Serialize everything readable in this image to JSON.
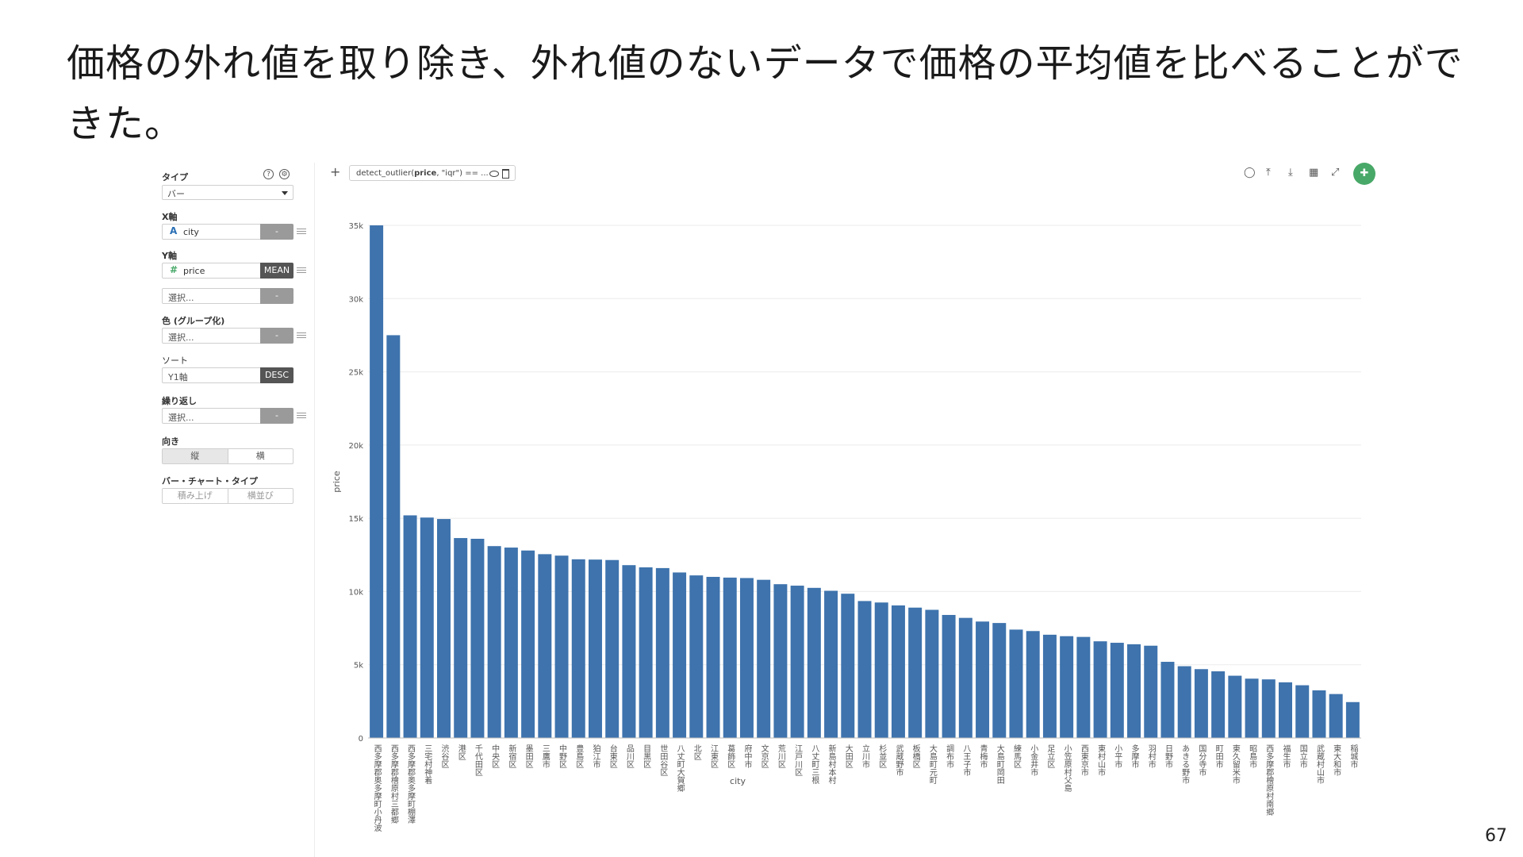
{
  "slide": {
    "title": "価格の外れ値を取り除き、外れ値のないデータで価格の平均値を比べることができた。",
    "page_number": "67"
  },
  "panel": {
    "type_label": "タイプ",
    "type_value": "バー",
    "x_axis_label": "X軸",
    "x_field": "city",
    "x_field_icon": "A",
    "x_agg": "-",
    "y_axis_label": "Y軸",
    "y_field": "price",
    "y_field_icon": "#",
    "y_agg": "MEAN",
    "y2_placeholder": "選択...",
    "y2_agg": "-",
    "color_label": "色 (グループ化)",
    "color_placeholder": "選択...",
    "color_agg": "-",
    "sort_label": "ソート",
    "sort_value": "Y1軸",
    "sort_order": "DESC",
    "repeat_label": "繰り返し",
    "repeat_placeholder": "選択...",
    "repeat_agg": "-",
    "orientation_label": "向き",
    "orientation_options": [
      "縦",
      "横"
    ],
    "bar_type_label": "バー・チャート・タイプ",
    "bar_type_options": [
      "積み上げ",
      "横並び"
    ],
    "icons": {
      "help": "help-icon",
      "settings": "gear-icon"
    }
  },
  "toolbar": {
    "add": "+",
    "filter_prefix": "detect_outlier(",
    "filter_bold": "price",
    "filter_suffix": ", \"iqr\") == ...",
    "icons": [
      "comment-icon",
      "upload-icon",
      "download-icon",
      "table-icon",
      "expand-icon",
      "pin-icon"
    ],
    "pin_color": "#48a868"
  },
  "chart_data": {
    "type": "bar",
    "xlabel": "city",
    "ylabel": "price",
    "ylim": [
      0,
      35000
    ],
    "yticks": [
      "0",
      "5k",
      "10k",
      "15k",
      "20k",
      "25k",
      "30k",
      "35k"
    ],
    "color": "#3e73ad",
    "categories": [
      "西多摩郡奥多摩町小丹波",
      "西多摩郡檜原村三都郷",
      "西多摩郡奥多摩町棚澤",
      "三宅村神着",
      "渋谷区",
      "港区",
      "千代田区",
      "中央区",
      "新宿区",
      "墨田区",
      "三鷹市",
      "中野区",
      "豊島区",
      "狛江市",
      "台東区",
      "品川区",
      "目黒区",
      "世田谷区",
      "八丈町大賀郷",
      "北区",
      "江東区",
      "葛飾区",
      "府中市",
      "文京区",
      "荒川区",
      "江戸川区",
      "八丈町三根",
      "新島村本村",
      "大田区",
      "立川市",
      "杉並区",
      "武蔵野市",
      "板橋区",
      "大島町元町",
      "調布市",
      "八王子市",
      "青梅市",
      "大島町岡田",
      "練馬区",
      "小金井市",
      "足立区",
      "小笠原村父島",
      "西東京市",
      "東村山市",
      "小平市",
      "多摩市",
      "羽村市",
      "日野市",
      "あきる野市",
      "国分寺市",
      "町田市",
      "東久留米市",
      "昭島市",
      "西多摩郡檜原村南郷",
      "福生市",
      "国立市",
      "武蔵村山市",
      "東大和市",
      "稲城市"
    ],
    "values": [
      35000,
      27500,
      15200,
      15050,
      14950,
      13650,
      13600,
      13100,
      13000,
      12800,
      12550,
      12450,
      12200,
      12180,
      12150,
      11800,
      11650,
      11600,
      11300,
      11100,
      11000,
      10950,
      10920,
      10800,
      10500,
      10400,
      10250,
      10050,
      9850,
      9350,
      9250,
      9050,
      8900,
      8750,
      8400,
      8200,
      7950,
      7850,
      7400,
      7300,
      7050,
      6950,
      6900,
      6600,
      6500,
      6400,
      6300,
      5200,
      4900,
      4700,
      4550,
      4250,
      4050,
      4000,
      3800,
      3600,
      3250,
      3000,
      2450
    ]
  }
}
